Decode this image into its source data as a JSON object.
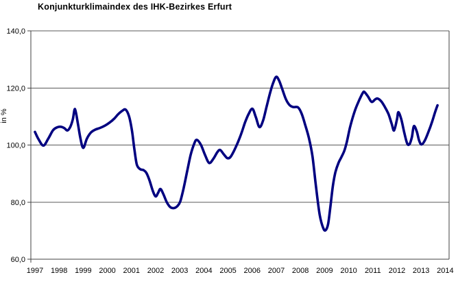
{
  "chart_data": {
    "type": "line",
    "title": "Konjunkturklimaindex des IHK-Bezirkes Erfurt",
    "ylabel": "in %",
    "xlabel": "",
    "ylim": [
      60,
      140
    ],
    "xlim": [
      1996.83,
      2014.16
    ],
    "yticks": [
      60,
      80,
      100,
      120,
      140
    ],
    "ytick_labels": [
      "60,0",
      "80,0",
      "100,0",
      "120,0",
      "140,0"
    ],
    "xticks": [
      1997,
      1998,
      1999,
      2000,
      2001,
      2002,
      2003,
      2004,
      2005,
      2006,
      2007,
      2008,
      2009,
      2010,
      2011,
      2012,
      2013,
      2014
    ],
    "grid": "horizontal",
    "legend": "none",
    "line_color": "#000080",
    "axis_color": "#404040",
    "grid_color": "#595959",
    "series": [
      {
        "name": "Konjunkturklimaindex",
        "color": "#000080",
        "points": [
          [
            1997.0,
            104.6
          ],
          [
            1997.15,
            102.0
          ],
          [
            1997.35,
            99.8
          ],
          [
            1997.55,
            102.2
          ],
          [
            1997.75,
            105.2
          ],
          [
            1997.92,
            106.2
          ],
          [
            1998.08,
            106.4
          ],
          [
            1998.22,
            105.9
          ],
          [
            1998.34,
            105.1
          ],
          [
            1998.46,
            106.3
          ],
          [
            1998.57,
            109.0
          ],
          [
            1998.66,
            112.6
          ],
          [
            1998.78,
            107.5
          ],
          [
            1998.88,
            102.5
          ],
          [
            1999.0,
            99.0
          ],
          [
            1999.15,
            102.2
          ],
          [
            1999.32,
            104.4
          ],
          [
            1999.5,
            105.4
          ],
          [
            1999.7,
            106.0
          ],
          [
            1999.9,
            106.8
          ],
          [
            2000.1,
            107.9
          ],
          [
            2000.28,
            109.2
          ],
          [
            2000.45,
            110.8
          ],
          [
            2000.62,
            112.0
          ],
          [
            2000.76,
            112.4
          ],
          [
            2000.9,
            110.0
          ],
          [
            2001.02,
            105.0
          ],
          [
            2001.12,
            98.5
          ],
          [
            2001.22,
            93.2
          ],
          [
            2001.35,
            91.6
          ],
          [
            2001.5,
            91.2
          ],
          [
            2001.62,
            90.2
          ],
          [
            2001.75,
            87.5
          ],
          [
            2001.88,
            84.0
          ],
          [
            2002.0,
            82.0
          ],
          [
            2002.1,
            83.2
          ],
          [
            2002.2,
            84.6
          ],
          [
            2002.33,
            82.6
          ],
          [
            2002.46,
            80.0
          ],
          [
            2002.6,
            78.3
          ],
          [
            2002.75,
            77.9
          ],
          [
            2002.9,
            78.6
          ],
          [
            2003.02,
            80.2
          ],
          [
            2003.15,
            84.5
          ],
          [
            2003.3,
            90.5
          ],
          [
            2003.45,
            96.5
          ],
          [
            2003.6,
            100.5
          ],
          [
            2003.71,
            101.8
          ],
          [
            2003.88,
            100.0
          ],
          [
            2004.05,
            96.5
          ],
          [
            2004.22,
            93.7
          ],
          [
            2004.4,
            95.3
          ],
          [
            2004.55,
            97.4
          ],
          [
            2004.67,
            98.3
          ],
          [
            2004.82,
            96.8
          ],
          [
            2004.97,
            95.4
          ],
          [
            2005.1,
            95.8
          ],
          [
            2005.25,
            98.0
          ],
          [
            2005.4,
            100.8
          ],
          [
            2005.55,
            104.0
          ],
          [
            2005.7,
            107.8
          ],
          [
            2005.85,
            110.8
          ],
          [
            2006.01,
            112.7
          ],
          [
            2006.15,
            109.8
          ],
          [
            2006.3,
            106.3
          ],
          [
            2006.45,
            108.5
          ],
          [
            2006.6,
            113.5
          ],
          [
            2006.75,
            118.5
          ],
          [
            2006.88,
            122.0
          ],
          [
            2007.0,
            123.9
          ],
          [
            2007.12,
            122.5
          ],
          [
            2007.25,
            119.5
          ],
          [
            2007.4,
            116.0
          ],
          [
            2007.55,
            114.0
          ],
          [
            2007.7,
            113.3
          ],
          [
            2007.9,
            113.2
          ],
          [
            2008.05,
            111.0
          ],
          [
            2008.2,
            107.0
          ],
          [
            2008.35,
            102.5
          ],
          [
            2008.5,
            96.0
          ],
          [
            2008.65,
            85.0
          ],
          [
            2008.8,
            75.5
          ],
          [
            2008.95,
            70.8
          ],
          [
            2009.05,
            70.2
          ],
          [
            2009.15,
            72.5
          ],
          [
            2009.25,
            79.0
          ],
          [
            2009.35,
            86.0
          ],
          [
            2009.45,
            90.5
          ],
          [
            2009.58,
            93.8
          ],
          [
            2009.7,
            95.8
          ],
          [
            2009.82,
            98.0
          ],
          [
            2009.92,
            101.0
          ],
          [
            2010.05,
            106.0
          ],
          [
            2010.18,
            110.0
          ],
          [
            2010.3,
            113.0
          ],
          [
            2010.45,
            116.0
          ],
          [
            2010.58,
            118.2
          ],
          [
            2010.65,
            118.6
          ],
          [
            2010.8,
            117.0
          ],
          [
            2010.95,
            115.1
          ],
          [
            2011.1,
            116.0
          ],
          [
            2011.2,
            116.3
          ],
          [
            2011.35,
            115.3
          ],
          [
            2011.5,
            113.3
          ],
          [
            2011.65,
            110.8
          ],
          [
            2011.78,
            107.5
          ],
          [
            2011.88,
            105.1
          ],
          [
            2012.0,
            109.0
          ],
          [
            2012.06,
            111.5
          ],
          [
            2012.18,
            109.0
          ],
          [
            2012.3,
            104.5
          ],
          [
            2012.42,
            100.6
          ],
          [
            2012.52,
            100.3
          ],
          [
            2012.62,
            102.8
          ],
          [
            2012.7,
            106.6
          ],
          [
            2012.82,
            104.8
          ],
          [
            2012.92,
            101.5
          ],
          [
            2013.02,
            100.2
          ],
          [
            2013.15,
            101.5
          ],
          [
            2013.3,
            104.5
          ],
          [
            2013.45,
            108.0
          ],
          [
            2013.58,
            111.5
          ],
          [
            2013.68,
            113.9
          ]
        ]
      }
    ]
  }
}
